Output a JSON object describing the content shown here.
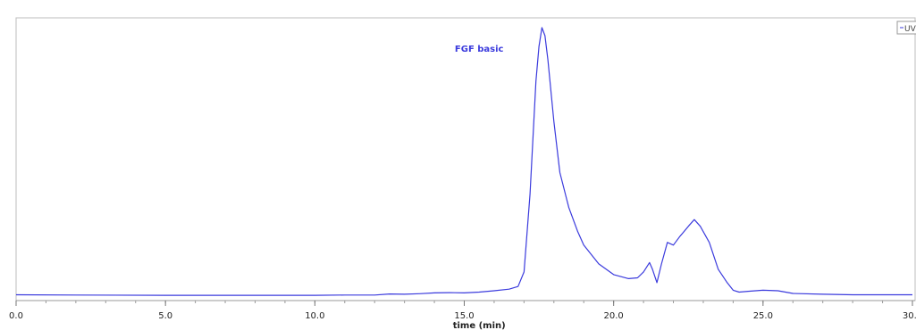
{
  "chart_data": {
    "type": "line",
    "title": "",
    "xlabel": "time (min)",
    "ylabel": "",
    "xlim": [
      0,
      30
    ],
    "ylim": [
      0,
      100
    ],
    "grid": false,
    "legend_position": "top-right",
    "x_ticks": [
      0,
      5,
      10,
      15,
      20,
      25,
      30
    ],
    "x_tick_labels": [
      "0.0",
      "5.0",
      "10.0",
      "15.0",
      "20.0",
      "25.0",
      "30.0"
    ],
    "annotations": [
      {
        "text": "FGF basic",
        "x": 15.5,
        "y": 91
      }
    ],
    "series": [
      {
        "name": "UV",
        "color": "#3b3bdd",
        "x": [
          0,
          2,
          5,
          8,
          10,
          11,
          12,
          12.5,
          13,
          13.5,
          14,
          14.5,
          15,
          15.5,
          16,
          16.5,
          16.8,
          17.0,
          17.2,
          17.4,
          17.5,
          17.6,
          17.7,
          17.8,
          18.0,
          18.2,
          18.5,
          18.8,
          19.0,
          19.5,
          20.0,
          20.5,
          20.8,
          21.0,
          21.2,
          21.3,
          21.45,
          21.6,
          21.8,
          22.0,
          22.2,
          22.5,
          22.7,
          22.9,
          23.2,
          23.5,
          23.8,
          24.0,
          24.2,
          24.5,
          25.0,
          25.5,
          26.0,
          27.0,
          28.0,
          29.0,
          30.0
        ],
        "values": [
          0.5,
          0.4,
          0.3,
          0.3,
          0.3,
          0.4,
          0.4,
          0.8,
          0.7,
          0.9,
          1.2,
          1.3,
          1.2,
          1.5,
          2.0,
          2.6,
          3.6,
          9.0,
          38.0,
          80.0,
          93.0,
          100.0,
          97.0,
          88.0,
          65.0,
          46.0,
          33.0,
          24.0,
          19.0,
          12.0,
          8.0,
          6.5,
          6.8,
          9.0,
          12.5,
          10.0,
          5.0,
          12.0,
          20.0,
          19.0,
          22.0,
          26.0,
          28.5,
          26.0,
          20.0,
          10.0,
          5.0,
          2.2,
          1.5,
          1.8,
          2.2,
          2.0,
          1.0,
          0.7,
          0.5,
          0.5,
          0.5
        ]
      }
    ]
  }
}
